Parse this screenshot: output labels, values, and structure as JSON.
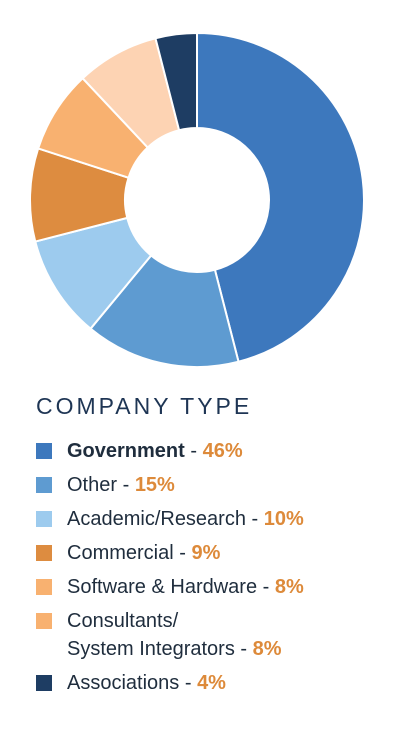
{
  "chart_data": {
    "type": "pie",
    "title": "COMPANY TYPE",
    "categories": [
      "Government",
      "Other",
      "Academic/Research",
      "Commercial",
      "Software & Hardware",
      "Consultants/ System Integrators",
      "Associations"
    ],
    "values": [
      46,
      15,
      10,
      9,
      8,
      8,
      4
    ],
    "display_values": [
      "46%",
      "15%",
      "10%",
      "9%",
      "8%",
      "8%",
      "4%"
    ],
    "colors": [
      "#3d78bd",
      "#5e9bd1",
      "#9dcbee",
      "#dd8c40",
      "#f8b170",
      "#fdd3b3",
      "#1e3d63"
    ],
    "legend_colors": [
      "#3d78bd",
      "#5e9bd1",
      "#9dcbee",
      "#dd8c40",
      "#f8b170",
      "#f8b170",
      "#1e3d63"
    ],
    "legend_placement": "bottom",
    "legend_label_lines": [
      [
        "Government"
      ],
      [
        "Other"
      ],
      [
        "Academic/Research"
      ],
      [
        "Commercial"
      ],
      [
        "Software & Hardware"
      ],
      [
        "Consultants/",
        "System Integrators"
      ],
      [
        "Associations"
      ]
    ],
    "start_angle_deg": 0,
    "direction": "clockwise",
    "separator": " - "
  }
}
